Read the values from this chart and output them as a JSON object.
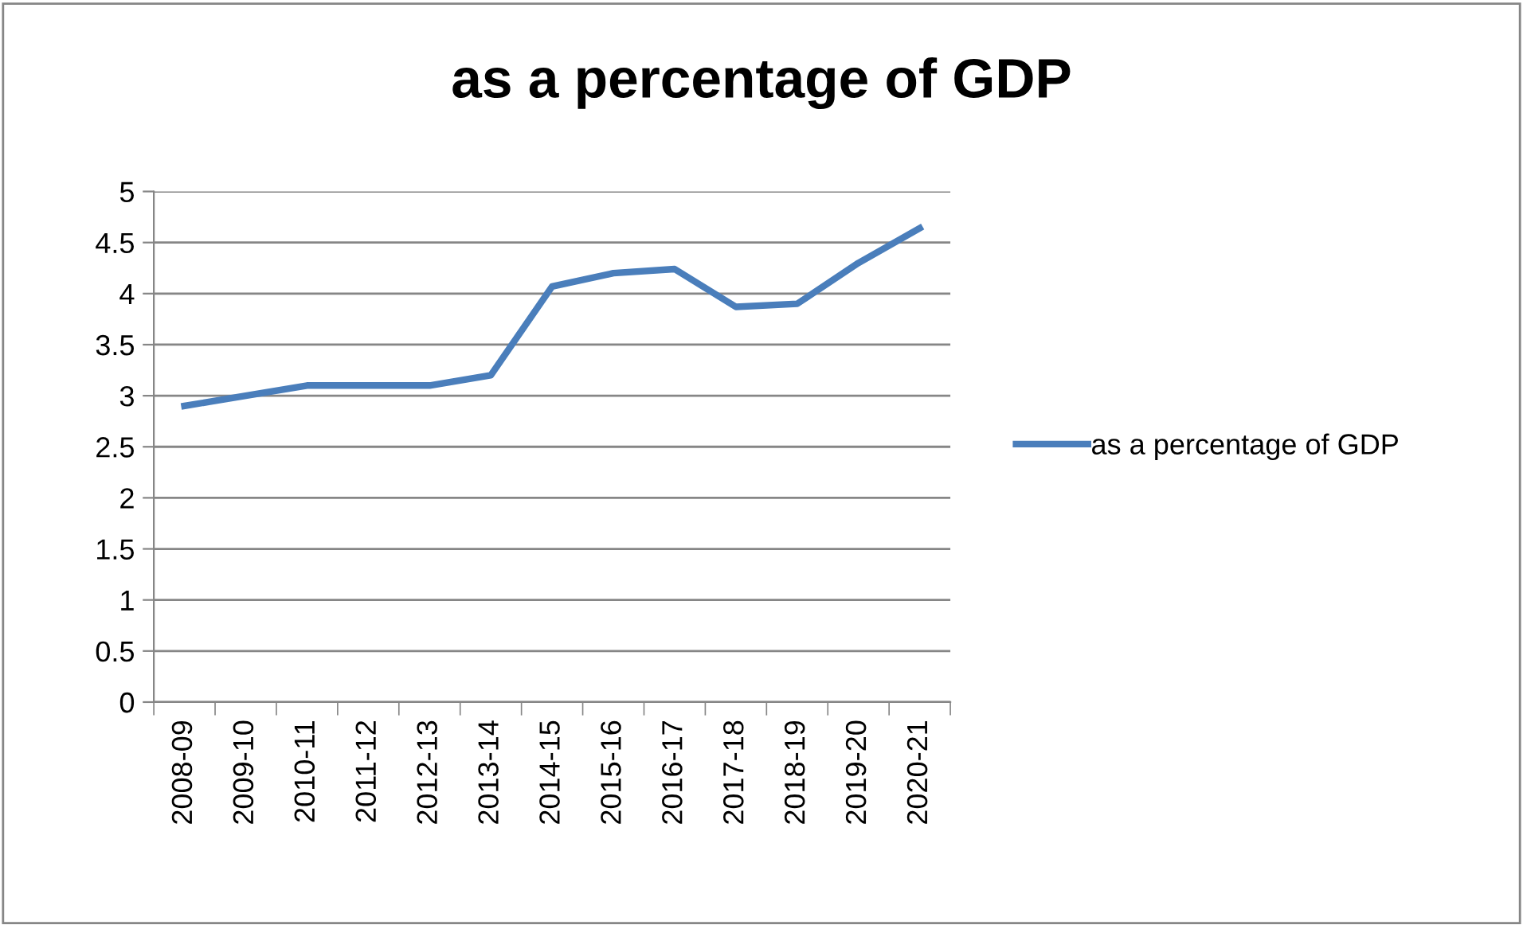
{
  "chart_data": {
    "type": "line",
    "title": "as a percentage of GDP",
    "categories": [
      "2008-09",
      "2009-10",
      "2010-11",
      "2011-12",
      "2012-13",
      "2013-14",
      "2014-15",
      "2015-16",
      "2016-17",
      "2017-18",
      "2018-19",
      "2019-20",
      "2020-21"
    ],
    "series": [
      {
        "name": "as a percentage of GDP",
        "color": "#4a7ebb",
        "values": [
          2.9,
          3.0,
          3.1,
          3.1,
          3.1,
          3.2,
          4.07,
          4.2,
          4.24,
          3.87,
          3.9,
          4.3,
          4.64
        ]
      }
    ],
    "ylim": [
      0,
      5
    ],
    "yticks": [
      0,
      0.5,
      1,
      1.5,
      2,
      2.5,
      3,
      3.5,
      4,
      4.5,
      5
    ],
    "grid": "y",
    "legend": "right",
    "marker": "none",
    "line_style": "solid"
  }
}
